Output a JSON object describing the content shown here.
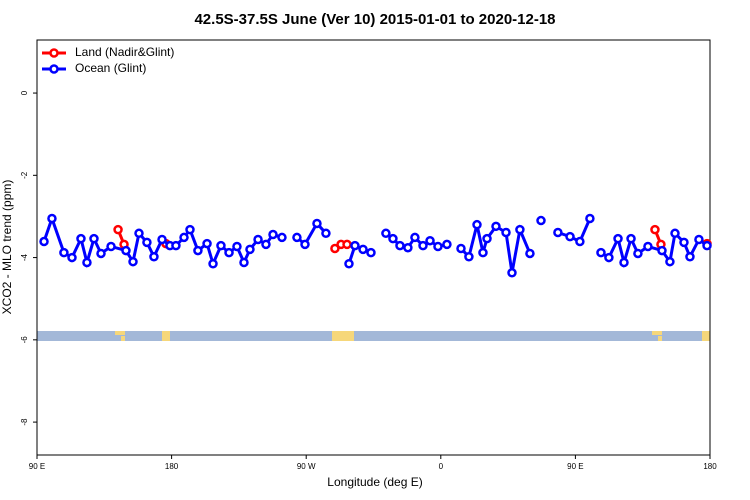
{
  "chart_data": {
    "type": "line",
    "title": "42.5S-37.5S June (Ver 10)   2015-01-01 to 2020-12-18",
    "x_label": "Longitude (deg E)",
    "y_label": "XCO2 - MLO trend (ppm)",
    "xlim": [
      90,
      540
    ],
    "xticks": [
      {
        "value": 90,
        "label": "90 E"
      },
      {
        "value": 180,
        "label": "180"
      },
      {
        "value": 270,
        "label": "90 W"
      },
      {
        "value": 360,
        "label": "0"
      },
      {
        "value": 450,
        "label": "90 E"
      },
      {
        "value": 540,
        "label": "180"
      }
    ],
    "ylim": [
      -8.8,
      1.29
    ],
    "yticks": [
      0,
      -2,
      -4,
      -6,
      -8
    ],
    "legend": "top-left",
    "series": [
      {
        "name": "Land (Nadir&Glint)",
        "color": "#ff0000",
        "x": [
          144.2,
          148.2,
          null,
          176.2,
          null,
          289.2,
          293.3,
          297.3,
          null,
          503.2,
          507.2,
          null,
          538
        ],
        "values": [
          -3.32,
          -3.68,
          null,
          -3.66,
          null,
          -3.78,
          -3.68,
          -3.68,
          null,
          -3.32,
          -3.68,
          null,
          -3.66
        ]
      },
      {
        "name": "Ocean (Glint)",
        "color": "#0000ff",
        "x": [
          94.7,
          100,
          108,
          113.4,
          119.4,
          123.4,
          128.1,
          132.8,
          139.5,
          149.5,
          154.2,
          158.2,
          163.5,
          168.2,
          173.6,
          178.9,
          182.9,
          188.3,
          192.3,
          197.6,
          203.7,
          207.7,
          213,
          218.4,
          223.7,
          228.4,
          232.4,
          237.8,
          243.1,
          247.8,
          253.8,
          null,
          263.8,
          269.2,
          277.2,
          283.2,
          null,
          298.6,
          302.6,
          308,
          313.3,
          null,
          323.3,
          328,
          332.7,
          338,
          342.7,
          348.1,
          352.8,
          358.1,
          364.1,
          null,
          373.5,
          378.8,
          384.2,
          388.2,
          390.9,
          396.9,
          403.6,
          407.6,
          412.9,
          419.6,
          null,
          427,
          null,
          438.3,
          446.4,
          453,
          459.7,
          null,
          467.1,
          472.4,
          478.5,
          482.5,
          487.2,
          491.8,
          498.5,
          507.9,
          513.2,
          516.6,
          522.6,
          526.6,
          532.6,
          538
        ],
        "values": [
          -3.61,
          -3.05,
          -3.88,
          -4.0,
          -3.54,
          -4.12,
          -3.54,
          -3.9,
          -3.73,
          -3.83,
          -4.1,
          -3.41,
          -3.63,
          -3.98,
          -3.56,
          -3.71,
          -3.71,
          -3.51,
          -3.32,
          -3.83,
          -3.66,
          -4.15,
          -3.71,
          -3.88,
          -3.73,
          -4.12,
          -3.8,
          -3.56,
          -3.68,
          -3.44,
          -3.51,
          null,
          -3.51,
          -3.68,
          -3.17,
          -3.41,
          null,
          -4.15,
          -3.71,
          -3.8,
          -3.88,
          null,
          -3.41,
          -3.54,
          -3.71,
          -3.76,
          -3.51,
          -3.71,
          -3.59,
          -3.73,
          -3.68,
          null,
          -3.78,
          -3.98,
          -3.2,
          -3.88,
          -3.54,
          -3.24,
          -3.39,
          -4.37,
          -3.32,
          -3.9,
          null,
          -3.1,
          null,
          -3.39,
          -3.49,
          -3.61,
          -3.05,
          null,
          -3.88,
          -4.0,
          -3.54,
          -4.12,
          -3.54,
          -3.9,
          -3.73,
          -3.83,
          -4.1,
          -3.41,
          -3.63,
          -3.98,
          -3.56,
          -3.71
        ]
      }
    ]
  }
}
